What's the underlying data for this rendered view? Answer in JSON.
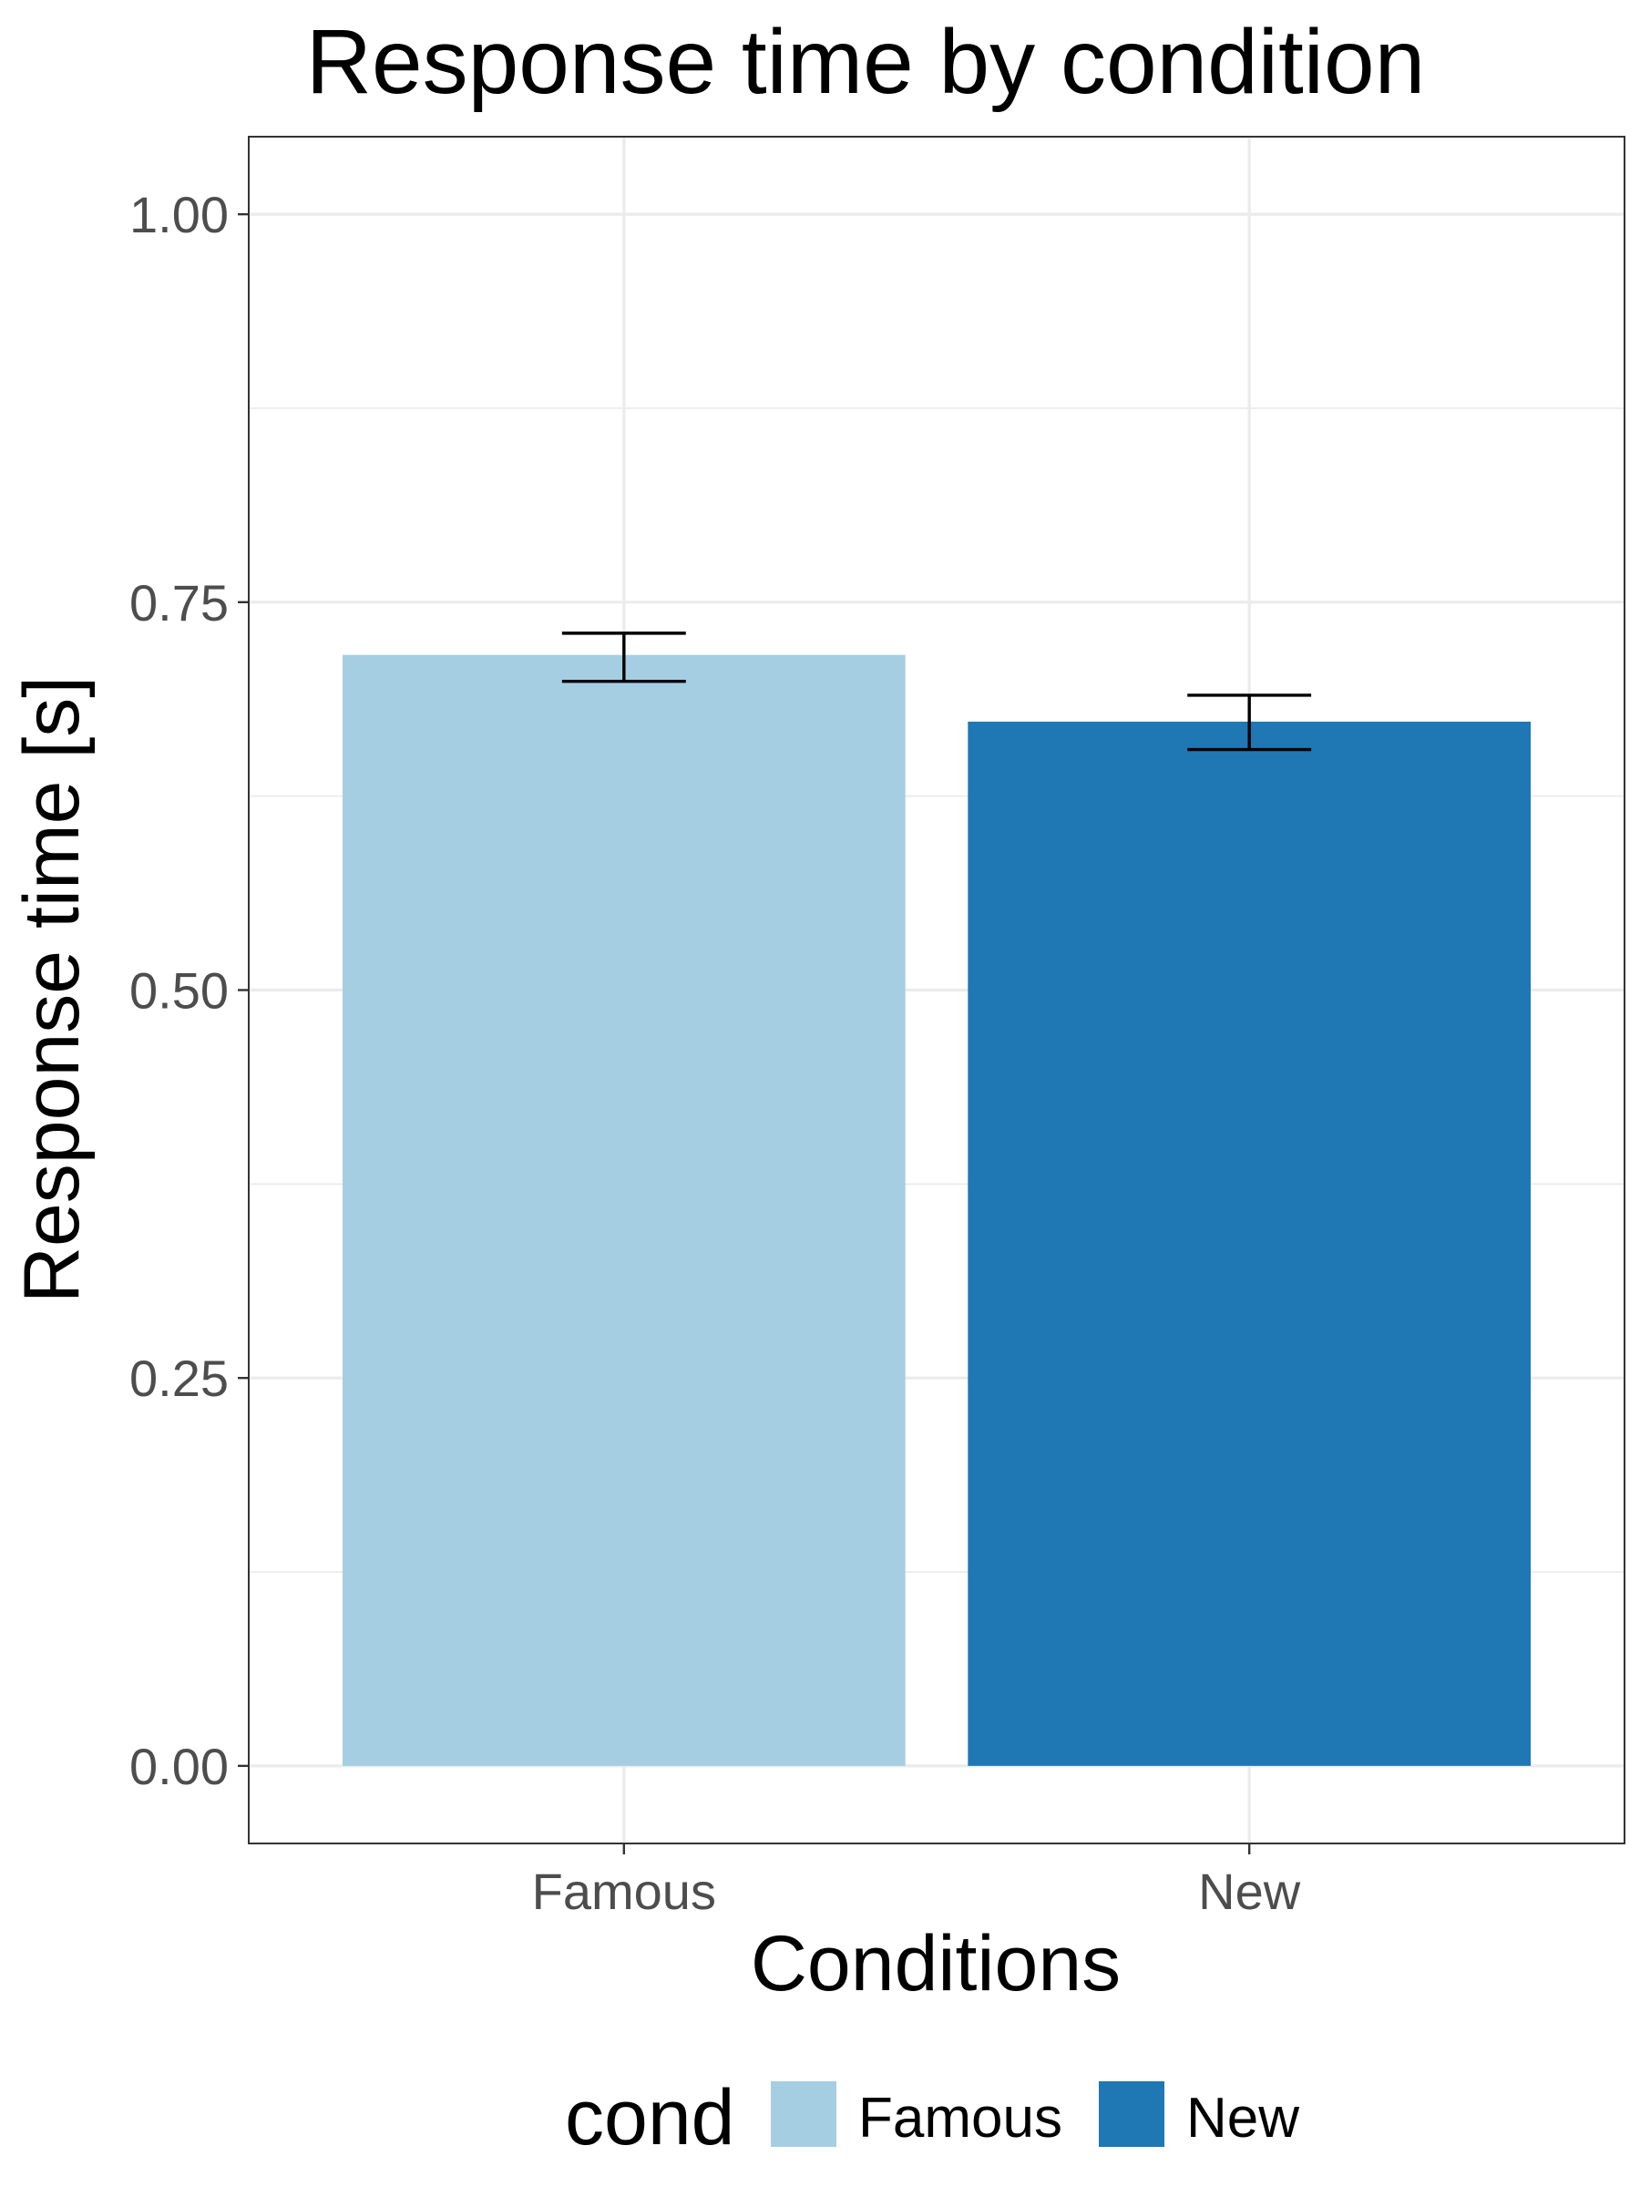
{
  "chart_data": {
    "type": "bar",
    "title": "Response time by condition",
    "xlabel": "Conditions",
    "ylabel": "Response time [s]",
    "categories": [
      "Famous",
      "New"
    ],
    "values": [
      0.716,
      0.673
    ],
    "error_bars": [
      {
        "low": 0.699,
        "high": 0.73
      },
      {
        "low": 0.655,
        "high": 0.69
      }
    ],
    "colors": [
      "#a6cee3",
      "#1f78b4"
    ],
    "ylim": [
      -0.05,
      1.05
    ],
    "yticks": [
      0.0,
      0.25,
      0.5,
      0.75,
      1.0
    ],
    "ytick_labels": [
      "0.00",
      "0.25",
      "0.50",
      "0.75",
      "1.00"
    ],
    "grid": true,
    "legend": {
      "title": "cond",
      "position": "bottom",
      "items": [
        {
          "label": "Famous",
          "color": "#a6cee3"
        },
        {
          "label": "New",
          "color": "#1f78b4"
        }
      ]
    }
  }
}
